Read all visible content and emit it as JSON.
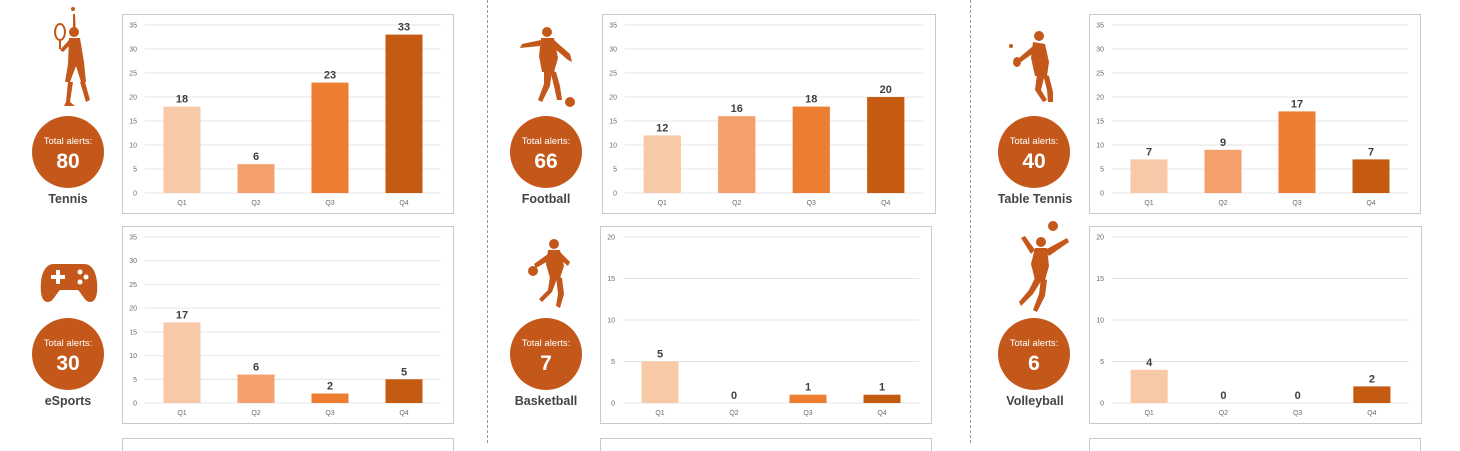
{
  "colors": {
    "accent": "#c4581b",
    "q1": "#f8c9a6",
    "q2": "#f4a06c",
    "q3": "#ed7d31",
    "q4": "#c55a11"
  },
  "panels": [
    {
      "sport": "Tennis",
      "icon": "tennis-player-icon",
      "badge_label": "Total alerts:",
      "total": "80",
      "chart": {
        "type": "bar",
        "categories": [
          "Q1",
          "Q2",
          "Q3",
          "Q4"
        ],
        "values": [
          18,
          6,
          23,
          33
        ],
        "ylim": [
          0,
          35
        ],
        "ticks": [
          0,
          5,
          10,
          15,
          20,
          25,
          30,
          35
        ]
      }
    },
    {
      "sport": "Football",
      "icon": "football-player-icon",
      "badge_label": "Total alerts:",
      "total": "66",
      "chart": {
        "type": "bar",
        "categories": [
          "Q1",
          "Q2",
          "Q3",
          "Q4"
        ],
        "values": [
          12,
          16,
          18,
          20
        ],
        "ylim": [
          0,
          35
        ],
        "ticks": [
          0,
          5,
          10,
          15,
          20,
          25,
          30,
          35
        ]
      }
    },
    {
      "sport": "Table Tennis",
      "icon": "table-tennis-player-icon",
      "badge_label": "Total alerts:",
      "total": "40",
      "chart": {
        "type": "bar",
        "categories": [
          "Q1",
          "Q2",
          "Q3",
          "Q4"
        ],
        "values": [
          7,
          9,
          17,
          7
        ],
        "ylim": [
          0,
          35
        ],
        "ticks": [
          0,
          5,
          10,
          15,
          20,
          25,
          30,
          35
        ]
      }
    },
    {
      "sport": "eSports",
      "icon": "gamepad-icon",
      "badge_label": "Total alerts:",
      "total": "30",
      "chart": {
        "type": "bar",
        "categories": [
          "Q1",
          "Q2",
          "Q3",
          "Q4"
        ],
        "values": [
          17,
          6,
          2,
          5
        ],
        "ylim": [
          0,
          35
        ],
        "ticks": [
          0,
          5,
          10,
          15,
          20,
          25,
          30,
          35
        ]
      }
    },
    {
      "sport": "Basketball",
      "icon": "basketball-player-icon",
      "badge_label": "Total alerts:",
      "total": "7",
      "chart": {
        "type": "bar",
        "categories": [
          "Q1",
          "Q2",
          "Q3",
          "Q4"
        ],
        "values": [
          5,
          0,
          1,
          1
        ],
        "ylim": [
          0,
          20
        ],
        "ticks": [
          0,
          5,
          10,
          15,
          20
        ]
      }
    },
    {
      "sport": "Volleyball",
      "icon": "volleyball-player-icon",
      "badge_label": "Total alerts:",
      "total": "6",
      "chart": {
        "type": "bar",
        "categories": [
          "Q1",
          "Q2",
          "Q3",
          "Q4"
        ],
        "values": [
          4,
          0,
          0,
          2
        ],
        "ylim": [
          0,
          20
        ],
        "ticks": [
          0,
          5,
          10,
          15,
          20
        ]
      }
    }
  ],
  "chart_data": [
    {
      "type": "bar",
      "categories": [
        "Q1",
        "Q2",
        "Q3",
        "Q4"
      ],
      "values": [
        18,
        6,
        23,
        33
      ],
      "ylim": [
        0,
        35
      ],
      "xlabel": "",
      "ylabel": "",
      "title": ""
    },
    {
      "type": "bar",
      "categories": [
        "Q1",
        "Q2",
        "Q3",
        "Q4"
      ],
      "values": [
        12,
        16,
        18,
        20
      ],
      "ylim": [
        0,
        35
      ],
      "xlabel": "",
      "ylabel": "",
      "title": ""
    },
    {
      "type": "bar",
      "categories": [
        "Q1",
        "Q2",
        "Q3",
        "Q4"
      ],
      "values": [
        7,
        9,
        17,
        7
      ],
      "ylim": [
        0,
        35
      ],
      "xlabel": "",
      "ylabel": "",
      "title": ""
    },
    {
      "type": "bar",
      "categories": [
        "Q1",
        "Q2",
        "Q3",
        "Q4"
      ],
      "values": [
        17,
        6,
        2,
        5
      ],
      "ylim": [
        0,
        35
      ],
      "xlabel": "",
      "ylabel": "",
      "title": ""
    },
    {
      "type": "bar",
      "categories": [
        "Q1",
        "Q2",
        "Q3",
        "Q4"
      ],
      "values": [
        5,
        0,
        1,
        1
      ],
      "ylim": [
        0,
        20
      ],
      "xlabel": "",
      "ylabel": "",
      "title": ""
    },
    {
      "type": "bar",
      "categories": [
        "Q1",
        "Q2",
        "Q3",
        "Q4"
      ],
      "values": [
        4,
        0,
        0,
        2
      ],
      "ylim": [
        0,
        20
      ],
      "xlabel": "",
      "ylabel": "",
      "title": ""
    }
  ]
}
